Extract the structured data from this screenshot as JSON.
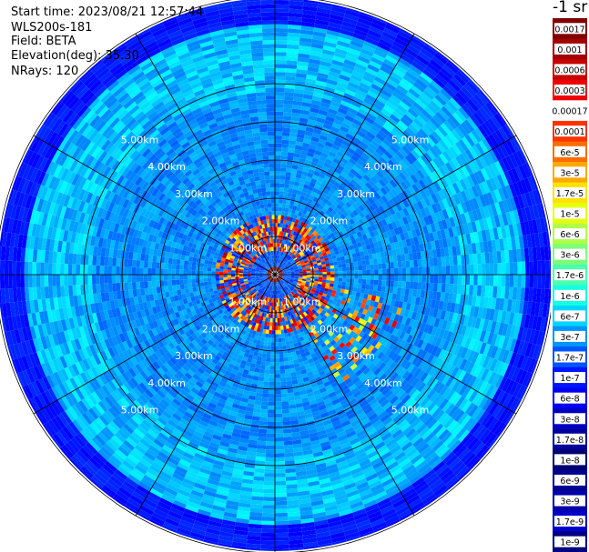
{
  "header": {
    "start_time": "Start time: 2023/08/21 12:57:44",
    "instrument": "WLS200s-181",
    "field": "Field: BETA",
    "elevation": "Elevation(deg): 35.30",
    "nrays": "NRays: 120"
  },
  "colorbar": {
    "title": "-1 sr",
    "labels": [
      "0.0017",
      "0.001",
      "0.0006",
      "0.0003",
      "0.00017",
      "0.0001",
      "6e-5",
      "3e-5",
      "1.7e-5",
      "1e-5",
      "6e-6",
      "3e-6",
      "1.7e-6",
      "1e-6",
      "6e-7",
      "3e-7",
      "1.7e-7",
      "1e-7",
      "6e-8",
      "3e-8",
      "1.7e-8",
      "1e-8",
      "6e-9",
      "3e-9",
      "1.7e-9",
      "1e-9"
    ],
    "colors": [
      "#7f0000",
      "#a30000",
      "#c80000",
      "#ef0000",
      "#ffffff",
      "#ff3200",
      "#ff6d00",
      "#ffa800",
      "#ffe200",
      "#e4ff12",
      "#b0ff47",
      "#7dff7a",
      "#4affad",
      "#16ffe1",
      "#00d4ff",
      "#0094ff",
      "#0054ff",
      "#0014ff",
      "#0000f1",
      "#0000c4",
      "#00009b",
      "#000072",
      "#000090",
      "#0000a8",
      "#0000c8",
      "#000080"
    ]
  },
  "chart_data": {
    "type": "heatmap",
    "projection": "polar PPI",
    "field": "BETA",
    "units": "-1 sr",
    "elevation_deg": 35.3,
    "nrays": 120,
    "range_rings_km": [
      1,
      2,
      3,
      4,
      5
    ],
    "range_ring_labels": [
      "1.00km",
      "2.00km",
      "3.00km",
      "4.00km",
      "5.00km"
    ],
    "max_range_km": 6.2,
    "spoke_step_deg": 30,
    "background_level": "1e-8 to 6e-8",
    "features": [
      {
        "name": "near-field ring",
        "range_km": [
          0.6,
          1.8
        ],
        "value": "1e-5 to 1e-4"
      },
      {
        "name": "east-southeast blobs",
        "range_km": [
          1.8,
          3.5
        ],
        "value": "1.7e-6 to 6e-5"
      }
    ]
  }
}
